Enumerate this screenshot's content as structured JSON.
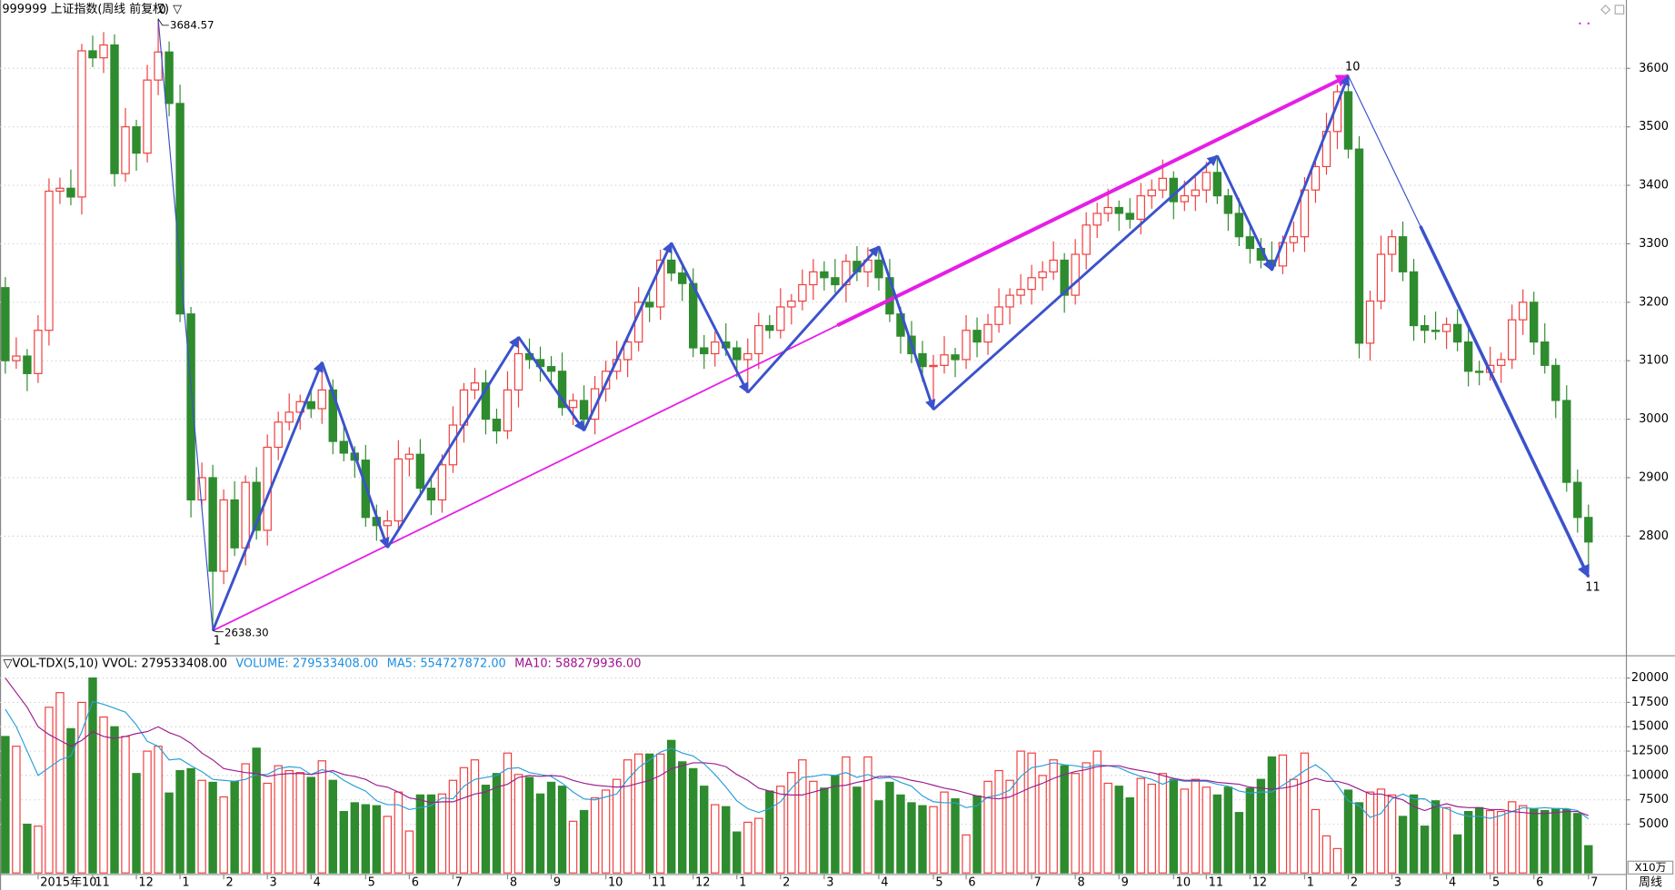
{
  "chart_data": {
    "type": "candlestick",
    "title": "999999 上证指数(周线 前复权) ▽",
    "period_label": "周线",
    "up_color": "#f03c3c",
    "down_color": "#2e8b2e",
    "zigzag_color": "#3b52cc",
    "trend_color": "#e61ee6",
    "grid": true,
    "ylim": [
      2600,
      3695
    ],
    "yticks": [
      2800,
      2900,
      3000,
      3100,
      3200,
      3300,
      3400,
      3500,
      3600
    ],
    "categories": [
      null,
      null,
      null,
      "2015年10",
      null,
      null,
      null,
      null,
      "11",
      null,
      null,
      null,
      "12",
      null,
      null,
      null,
      "1",
      null,
      null,
      null,
      "2",
      null,
      null,
      null,
      "3",
      null,
      null,
      null,
      "4",
      null,
      null,
      null,
      null,
      "5",
      null,
      null,
      null,
      "6",
      null,
      null,
      null,
      "7",
      null,
      null,
      null,
      null,
      "8",
      null,
      null,
      null,
      "9",
      null,
      null,
      null,
      null,
      "10",
      null,
      null,
      null,
      "11",
      null,
      null,
      null,
      "12",
      null,
      null,
      null,
      "1",
      null,
      null,
      null,
      "2",
      null,
      null,
      null,
      "3",
      null,
      null,
      null,
      null,
      "4",
      null,
      null,
      null,
      null,
      "5",
      null,
      null,
      "6",
      null,
      null,
      null,
      null,
      null,
      "7",
      null,
      null,
      null,
      "8",
      null,
      null,
      null,
      "9",
      null,
      null,
      null,
      null,
      "10",
      null,
      null,
      "11",
      null,
      null,
      null,
      "12",
      null,
      null,
      null,
      null,
      "1",
      null,
      null,
      null,
      "2",
      null,
      null,
      null,
      "3",
      null,
      null,
      null,
      null,
      "4",
      null,
      null,
      null,
      "5",
      null,
      null,
      null,
      "6",
      null,
      null,
      null,
      null,
      "7"
    ],
    "open": [
      3225,
      3100,
      3108,
      3078,
      3152,
      3390,
      3395,
      3380,
      3630,
      3618,
      3640,
      3420,
      3500,
      3455,
      3580,
      3628,
      3540,
      3180,
      2862,
      2900,
      2740,
      2862,
      2780,
      2892,
      2810,
      2952,
      2995,
      3012,
      3030,
      3018,
      3050,
      2962,
      2942,
      2930,
      2832,
      2818,
      2826,
      2932,
      2940,
      2882,
      2862,
      2922,
      2990,
      3050,
      3062,
      3000,
      2980,
      3050,
      3112,
      3102,
      3090,
      3082,
      3020,
      3032,
      3000,
      3052,
      3082,
      3102,
      3132,
      3200,
      3192,
      3272,
      3250,
      3232,
      3122,
      3112,
      3132,
      3122,
      3102,
      3112,
      3160,
      3152,
      3192,
      3202,
      3230,
      3252,
      3242,
      3230,
      3270,
      3252,
      3272,
      3242,
      3180,
      3142,
      3112,
      3090,
      3092,
      3110,
      3102,
      3152,
      3132,
      3162,
      3192,
      3212,
      3222,
      3242,
      3252,
      3272,
      3212,
      3282,
      3332,
      3352,
      3362,
      3352,
      3342,
      3382,
      3392,
      3412,
      3372,
      3382,
      3392,
      3422,
      3382,
      3352,
      3312,
      3292,
      3272,
      3262,
      3302,
      3312,
      3392,
      3432,
      3492,
      3560,
      3462,
      3130,
      3202,
      3282,
      3312,
      3252,
      3160,
      3152,
      3150,
      3162,
      3132,
      3082,
      3080,
      3092,
      3102,
      3170,
      3200,
      3132,
      3092,
      3032,
      2892,
      2832
    ],
    "high": [
      3243,
      3140,
      3120,
      3178,
      3412,
      3413,
      3427,
      3642,
      3656,
      3662,
      3658,
      3532,
      3512,
      3606,
      3684.57,
      3646,
      3572,
      3192,
      2926,
      2922,
      2880,
      2894,
      2904,
      2918,
      2974,
      3013,
      3044,
      3042,
      3056,
      3097.5,
      3068,
      2994,
      2954,
      2956,
      2854,
      2844,
      2964,
      2952,
      2966,
      2904,
      2940,
      3022,
      3062,
      3088,
      3084,
      3018,
      3082,
      3140.5,
      3138,
      3124,
      3108,
      3114,
      3044,
      3058,
      3074,
      3100,
      3134,
      3144,
      3226,
      3222,
      3290,
      3301.5,
      3262,
      3258,
      3144,
      3150,
      3164,
      3134,
      3138,
      3182,
      3178,
      3224,
      3214,
      3256,
      3274,
      3270,
      3274,
      3282,
      3296,
      3294,
      3295.5,
      3274,
      3192,
      3168,
      3134,
      3110,
      3142,
      3122,
      3178,
      3174,
      3180,
      3224,
      3224,
      3248,
      3264,
      3270,
      3304,
      3284,
      3308,
      3354,
      3370,
      3394,
      3374,
      3378,
      3404,
      3410,
      3444,
      3424,
      3408,
      3414,
      3440,
      3450.5,
      3394,
      3378,
      3334,
      3310,
      3304,
      3314,
      3338,
      3414,
      3450,
      3524,
      3572,
      3587.5,
      3484,
      3220,
      3314,
      3324,
      3338,
      3274,
      3178,
      3184,
      3174,
      3188,
      3154,
      3100,
      3124,
      3114,
      3196,
      3222,
      3218,
      3164,
      3104,
      3058,
      2914,
      2854
    ],
    "low": [
      3078,
      3086,
      3048,
      3062,
      3126,
      3368,
      3366,
      3350,
      3602,
      3592,
      3398,
      3406,
      3425,
      3439,
      3554,
      3518,
      3166,
      2832,
      2846,
      2638.3,
      2718,
      2766,
      2750,
      2794,
      2784,
      2930,
      2981,
      2982,
      3002,
      2992,
      2940,
      2928,
      2900,
      2816,
      2792,
      2780.5,
      2812,
      2902,
      2866,
      2836,
      2840,
      2908,
      2960,
      3034,
      2974,
      2958,
      2966,
      3020,
      3086,
      3064,
      3060,
      3006,
      2990,
      2980.5,
      2974,
      3030,
      3068,
      3072,
      3116,
      3166,
      3170,
      3236,
      3202,
      3106,
      3086,
      3090,
      3108,
      3072,
      3045.5,
      3086,
      3138,
      3138,
      3162,
      3186,
      3204,
      3220,
      3216,
      3200,
      3236,
      3226,
      3220,
      3166,
      3112,
      3096,
      3064,
      3016.5,
      3078,
      3072,
      3086,
      3106,
      3110,
      3148,
      3162,
      3196,
      3196,
      3220,
      3238,
      3182,
      3196,
      3256,
      3310,
      3338,
      3322,
      3326,
      3316,
      3360,
      3378,
      3342,
      3356,
      3356,
      3370,
      3368,
      3322,
      3296,
      3266,
      3258,
      3254.5,
      3248,
      3286,
      3286,
      3370,
      3418,
      3462,
      3446,
      3104,
      3100,
      3188,
      3252,
      3236,
      3134,
      3130,
      3136,
      3120,
      3116,
      3056,
      3058,
      3066,
      3062,
      3086,
      3144,
      3110,
      3078,
      3002,
      2876,
      2806,
      2730.5
    ],
    "close": [
      3100,
      3108,
      3078,
      3152,
      3390,
      3395,
      3380,
      3630,
      3618,
      3640,
      3420,
      3500,
      3455,
      3580,
      3628,
      3540,
      3180,
      2862,
      2900,
      2740,
      2862,
      2780,
      2892,
      2810,
      2952,
      2995,
      3012,
      3030,
      3018,
      3050,
      2962,
      2942,
      2930,
      2832,
      2818,
      2826,
      2932,
      2940,
      2882,
      2862,
      2922,
      2990,
      3050,
      3062,
      3000,
      2980,
      3050,
      3112,
      3102,
      3090,
      3082,
      3020,
      3032,
      3000,
      3052,
      3082,
      3102,
      3132,
      3200,
      3192,
      3272,
      3250,
      3232,
      3122,
      3112,
      3132,
      3122,
      3102,
      3112,
      3160,
      3152,
      3192,
      3202,
      3230,
      3252,
      3242,
      3230,
      3270,
      3252,
      3272,
      3242,
      3180,
      3142,
      3112,
      3090,
      3092,
      3110,
      3102,
      3152,
      3132,
      3162,
      3192,
      3212,
      3222,
      3242,
      3252,
      3272,
      3212,
      3282,
      3332,
      3352,
      3362,
      3352,
      3342,
      3382,
      3392,
      3412,
      3372,
      3382,
      3392,
      3422,
      3382,
      3352,
      3312,
      3292,
      3272,
      3262,
      3302,
      3312,
      3392,
      3432,
      3492,
      3560,
      3462,
      3130,
      3202,
      3282,
      3312,
      3252,
      3160,
      3152,
      3150,
      3162,
      3132,
      3082,
      3080,
      3092,
      3102,
      3170,
      3200,
      3132,
      3092,
      3032,
      2892,
      2832,
      2790
    ],
    "pivots": [
      {
        "label": "0",
        "value": 3684.57,
        "value_label": "3684.57"
      },
      {
        "label": "1",
        "value": 2638.3,
        "value_label": "2638.30"
      },
      {
        "value": 3097.5
      },
      {
        "value": 2780.5
      },
      {
        "value": 3140.5
      },
      {
        "value": 2980.5
      },
      {
        "value": 3301.5
      },
      {
        "value": 3045.5
      },
      {
        "value": 3295.5
      },
      {
        "value": 3016.5
      },
      {
        "value": 3450.5
      },
      {
        "value": 3254.5
      },
      {
        "label": "10",
        "value": 3587.5
      },
      {
        "label": "11",
        "value": 2730.5
      }
    ],
    "volume": {
      "header": [
        {
          "text": "▽VOL-TDX(5,10)  VVOL: 279533408.00",
          "color": "#000000"
        },
        {
          "text": "VOLUME: 279533408.00",
          "color": "#1e8fe0"
        },
        {
          "text": "MA5: 554727872.00",
          "color": "#1e8fe0"
        },
        {
          "text": "MA10: 588279936.00",
          "color": "#a01090"
        }
      ],
      "unit_label": "X10万",
      "ylim": [
        0,
        22230
      ],
      "yticks": [
        5000,
        7500,
        10000,
        12500,
        15000,
        17500,
        20000
      ],
      "values": [
        14000,
        13000,
        5000,
        4800,
        17000,
        18500,
        14800,
        17500,
        20000,
        16000,
        15000,
        14000,
        10200,
        12500,
        13000,
        8200,
        10500,
        10700,
        9500,
        9300,
        7800,
        9400,
        11200,
        12800,
        9200,
        11000,
        10500,
        10300,
        9800,
        11500,
        9500,
        6300,
        7200,
        7000,
        6900,
        5800,
        8300,
        4300,
        8000,
        8000,
        8100,
        9500,
        10800,
        11600,
        9000,
        10200,
        12300,
        10100,
        9800,
        8100,
        9300,
        8900,
        5300,
        6400,
        7700,
        8500,
        9600,
        11600,
        12200,
        12200,
        12200,
        13600,
        11400,
        10700,
        8900,
        7000,
        6800,
        4200,
        5200,
        5600,
        8400,
        8900,
        10300,
        11600,
        9400,
        8700,
        10000,
        11900,
        8800,
        11900,
        7400,
        9300,
        8000,
        7200,
        6900,
        6800,
        8300,
        7600,
        3900,
        7900,
        9400,
        10500,
        9500,
        12500,
        12300,
        10000,
        11600,
        11000,
        10200,
        11300,
        12500,
        9200,
        8900,
        7700,
        9700,
        9100,
        10200,
        9600,
        8600,
        9600,
        8800,
        8000,
        8800,
        6200,
        8700,
        9600,
        11900,
        12100,
        9600,
        12300,
        6500,
        3800,
        2500,
        8500,
        7200,
        8300,
        8600,
        8000,
        5800,
        8000,
        4800,
        7400,
        6700,
        3900,
        6300,
        6700,
        6400,
        6300,
        7300,
        6900,
        6600,
        6400,
        6600,
        6500,
        6100,
        2795.33
      ],
      "ma5": {
        "color": "#2a9fd8",
        "values": [
          16800,
          15000,
          12500,
          10000,
          10800,
          11600,
          12000,
          14500,
          17600,
          17300,
          16900,
          16500,
          15200,
          13500,
          13000,
          11600,
          11700,
          11000,
          10400,
          9600,
          9500,
          9400,
          9600,
          10100,
          10100,
          10700,
          10900,
          10800,
          10100,
          10600,
          10300,
          9500,
          8900,
          8400,
          7400,
          7000,
          7000,
          6500,
          6700,
          6900,
          7700,
          7600,
          8900,
          9600,
          9800,
          10000,
          10700,
          10800,
          10300,
          10100,
          9900,
          9200,
          8300,
          7600,
          7500,
          7800,
          8100,
          9600,
          10800,
          11600,
          12400,
          12800,
          12300,
          12000,
          11200,
          10100,
          8800,
          7400,
          6600,
          6200,
          6600,
          7300,
          8700,
          9800,
          9900,
          10100,
          10000,
          10300,
          9800,
          10100,
          9700,
          9800,
          9300,
          8900,
          7900,
          7300,
          7200,
          7200,
          6700,
          6900,
          7800,
          8000,
          8500,
          9900,
          10800,
          11000,
          11300,
          11100,
          11000,
          10800,
          11100,
          11000,
          10800,
          10300,
          9900,
          9600,
          9100,
          9600,
          9400,
          9400,
          9400,
          9100,
          8900,
          8400,
          8200,
          8300,
          8300,
          9000,
          9700,
          10500,
          11100,
          10300,
          9000,
          7400,
          6900,
          5700,
          6100,
          7600,
          8100,
          7600,
          7600,
          6900,
          6600,
          6100,
          5800,
          5800,
          5600,
          5900,
          6300,
          6700,
          6600,
          6700,
          6600,
          6600,
          6400,
          5547.27
        ]
      },
      "ma10": {
        "color": "#9b1f8f",
        "values": [
          20000,
          18500,
          17000,
          15000,
          14200,
          13600,
          13000,
          13600,
          14500,
          14000,
          13800,
          14000,
          14300,
          14500,
          15000,
          14400,
          14000,
          13300,
          12300,
          11600,
          10700,
          10500,
          10300,
          10200,
          9900,
          10100,
          10200,
          10200,
          10100,
          10300,
          10500,
          10100,
          9900,
          9600,
          9000,
          8800,
          8300,
          7700,
          7500,
          7200,
          7300,
          7300,
          7700,
          8100,
          8300,
          8800,
          9100,
          9800,
          10000,
          9900,
          10000,
          9900,
          9500,
          9200,
          9000,
          8900,
          8800,
          8900,
          9200,
          9500,
          10000,
          10700,
          11000,
          11300,
          11300,
          11200,
          10900,
          10100,
          9500,
          8700,
          8400,
          8100,
          8000,
          8000,
          8300,
          8600,
          8900,
          9000,
          9300,
          9500,
          9900,
          9900,
          9800,
          9500,
          9300,
          9000,
          8700,
          8500,
          8200,
          7900,
          7700,
          7600,
          7800,
          8300,
          8800,
          9200,
          9700,
          10100,
          10400,
          10600,
          10900,
          11000,
          11000,
          10700,
          10500,
          10300,
          10000,
          9700,
          9500,
          9500,
          9500,
          9300,
          9200,
          9100,
          8800,
          8700,
          8600,
          8700,
          8900,
          9300,
          9700,
          9400,
          9400,
          9100,
          8600,
          8100,
          8100,
          7800,
          7500,
          6800,
          6400,
          6800,
          7100,
          6800,
          6700,
          6700,
          6500,
          6500,
          6300,
          6200,
          6100,
          6100,
          6200,
          6300,
          6300,
          5882.8
        ]
      }
    }
  }
}
